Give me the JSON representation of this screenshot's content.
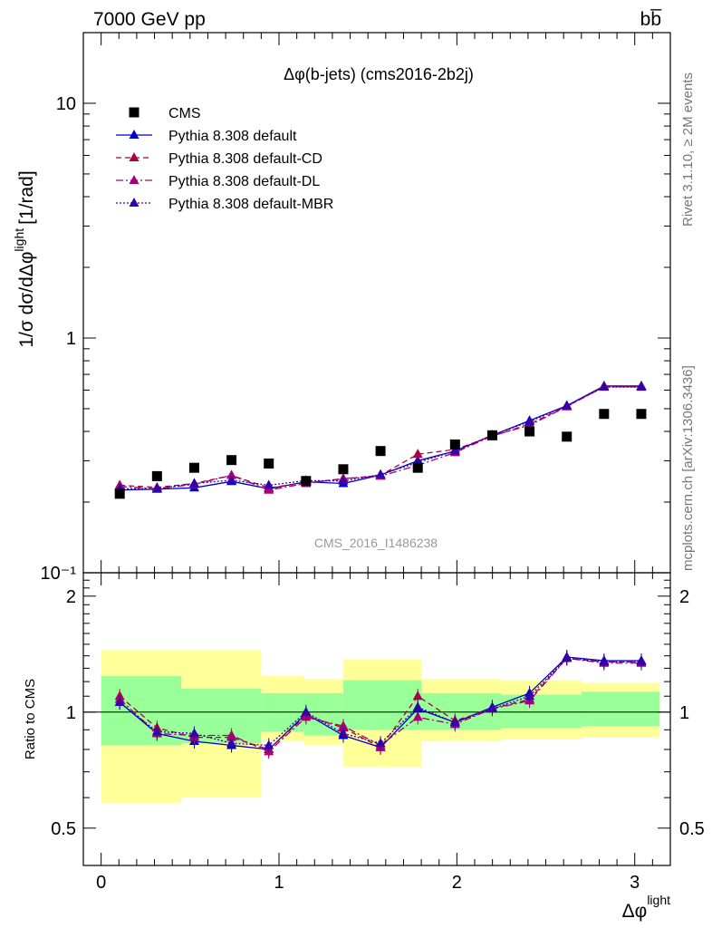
{
  "header": {
    "energy_label": "7000 GeV pp",
    "process_label": "bb̅"
  },
  "side_labels": {
    "rivet": "Rivet 3.1.10, ≥ 2M events",
    "mcplots": "mcplots.cern.ch [arXiv:1306.3436]"
  },
  "watermark": "CMS_2016_I1486238",
  "colors": {
    "mc_default": "#0000cc",
    "mc_cd": "#aa0044",
    "mc_dl": "#aa0077",
    "mc_mbr": "#3300aa",
    "band_inner": "#99ff99",
    "band_outer": "#ffff99"
  },
  "chart_data": [
    {
      "type": "scatter",
      "panel": "main",
      "title": "Δφ(b-jets) (cms2016-2b2j)",
      "ylabel": "1/σ dσ/dΔφ^light [1/rad]",
      "ylabel_parts": {
        "main": "1/σ dσ/dΔφ",
        "sup": "light",
        "unit": "[1/rad]"
      },
      "yscale": "log",
      "ylim": [
        0.1,
        20
      ],
      "xlim": [
        -0.1,
        3.2
      ],
      "ytick_labels": [
        "10⁻¹",
        "1",
        "10"
      ],
      "legend_position": "top-left",
      "x": [
        0.1047,
        0.3142,
        0.5236,
        0.733,
        0.9425,
        1.1519,
        1.3614,
        1.5708,
        1.7802,
        1.9897,
        2.1991,
        2.4086,
        2.618,
        2.8274,
        3.0369
      ],
      "data": {
        "name": "CMS",
        "values": [
          0.217,
          0.258,
          0.28,
          0.302,
          0.292,
          0.246,
          0.276,
          0.33,
          0.28,
          0.352,
          0.385,
          0.4,
          0.38,
          0.475,
          0.475
        ]
      },
      "series": [
        {
          "name": "Pythia 8.308 default",
          "style": "solid",
          "values": [
            0.225,
            0.227,
            0.23,
            0.245,
            0.228,
            0.244,
            0.24,
            0.261,
            0.3,
            0.33,
            0.385,
            0.445,
            0.515,
            0.625,
            0.625
          ]
        },
        {
          "name": "Pythia 8.308 default-CD",
          "style": "dashed",
          "values": [
            0.236,
            0.231,
            0.24,
            0.26,
            0.23,
            0.242,
            0.251,
            0.26,
            0.32,
            0.335,
            0.382,
            0.43,
            0.512,
            0.62,
            0.62
          ]
        },
        {
          "name": "Pythia 8.308 default-DL",
          "style": "dashdot",
          "values": [
            0.233,
            0.228,
            0.238,
            0.26,
            0.225,
            0.24,
            0.252,
            0.258,
            0.287,
            0.325,
            0.383,
            0.425,
            0.51,
            0.62,
            0.62
          ]
        },
        {
          "name": "Pythia 8.308 default-MBR",
          "style": "dotted",
          "values": [
            0.228,
            0.228,
            0.24,
            0.248,
            0.236,
            0.247,
            0.246,
            0.262,
            0.295,
            0.33,
            0.386,
            0.44,
            0.515,
            0.618,
            0.618
          ]
        }
      ]
    },
    {
      "type": "line",
      "panel": "ratio",
      "ylabel": "Ratio to CMS",
      "xlabel": "Δφ^light",
      "xlabel_parts": {
        "main": "Δφ",
        "sup": "light"
      },
      "ylim": [
        0.4,
        2.3
      ],
      "xlim": [
        -0.1,
        3.2
      ],
      "ytick_labels": [
        "0.5",
        "1",
        "2"
      ],
      "xtick_labels": [
        "0",
        "1",
        "2",
        "3"
      ],
      "x": [
        0.1047,
        0.3142,
        0.5236,
        0.733,
        0.9425,
        1.1519,
        1.3614,
        1.5708,
        1.7802,
        1.9897,
        2.1991,
        2.4086,
        2.618,
        2.8274,
        3.0369
      ],
      "bands": {
        "edges": [
          0.0,
          0.45,
          0.9,
          1.14,
          1.36,
          1.8,
          2.25,
          2.7,
          3.14
        ],
        "inner_low": [
          0.82,
          0.83,
          0.89,
          0.87,
          0.9,
          0.9,
          0.91,
          0.92
        ],
        "inner_high": [
          1.24,
          1.15,
          1.12,
          1.12,
          1.21,
          1.12,
          1.11,
          1.13
        ],
        "outer_low": [
          0.58,
          0.6,
          0.84,
          0.82,
          0.72,
          0.84,
          0.85,
          0.86
        ],
        "outer_high": [
          1.45,
          1.45,
          1.24,
          1.22,
          1.37,
          1.22,
          1.21,
          1.19
        ],
        "row_edges": [
          0.0,
          0.45,
          0.9,
          1.14,
          1.36,
          1.8,
          2.25,
          2.7,
          3.14
        ]
      },
      "series": [
        {
          "name": "Pythia 8.308 default",
          "style": "solid",
          "values": [
            1.06,
            0.88,
            0.84,
            0.82,
            0.8,
            0.99,
            0.87,
            0.81,
            1.02,
            0.94,
            1.03,
            1.12,
            1.39,
            1.36,
            1.36
          ]
        },
        {
          "name": "Pythia 8.308 default-CD",
          "style": "dashed",
          "values": [
            1.1,
            0.91,
            0.86,
            0.86,
            0.8,
            0.98,
            0.91,
            0.81,
            1.1,
            0.95,
            1.02,
            1.08,
            1.38,
            1.35,
            1.35
          ]
        },
        {
          "name": "Pythia 8.308 default-DL",
          "style": "dashdot",
          "values": [
            1.08,
            0.88,
            0.87,
            0.87,
            0.79,
            0.97,
            0.92,
            0.82,
            0.97,
            0.93,
            1.02,
            1.07,
            1.38,
            1.34,
            1.34
          ]
        },
        {
          "name": "Pythia 8.308 default-MBR",
          "style": "dotted",
          "values": [
            1.06,
            0.89,
            0.88,
            0.83,
            0.82,
            1.0,
            0.88,
            0.83,
            1.03,
            0.94,
            1.02,
            1.1,
            1.38,
            1.35,
            1.35
          ]
        }
      ]
    }
  ]
}
